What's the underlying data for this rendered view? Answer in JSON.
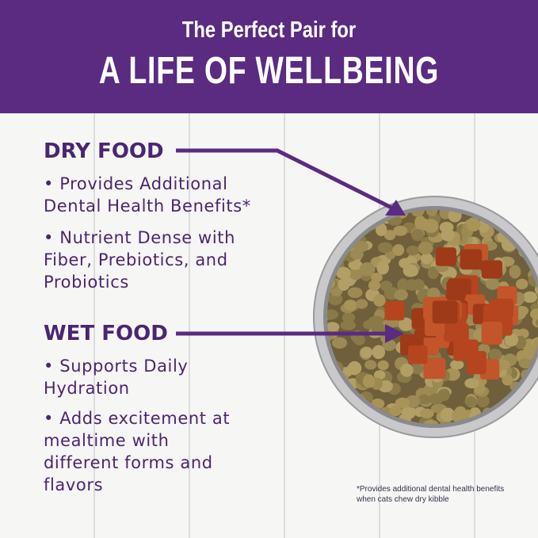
{
  "header": {
    "line1": "The Perfect Pair for",
    "line2": "A LIFE OF WELLBEING"
  },
  "dry": {
    "title": "DRY FOOD",
    "bullets": [
      "• Provides Additional Dental Health Benefits*",
      "• Nutrient Dense with Fiber, Prebiotics, and Probiotics"
    ]
  },
  "wet": {
    "title": "WET FOOD",
    "bullets": [
      "• Supports Daily Hydration",
      "• Adds excitement at mealtime with different forms and flavors"
    ]
  },
  "footnote": "*Provides additional dental health benefits when cats chew dry kibble",
  "colors": {
    "brand": "#5a2b80",
    "text": "#4b2670"
  }
}
